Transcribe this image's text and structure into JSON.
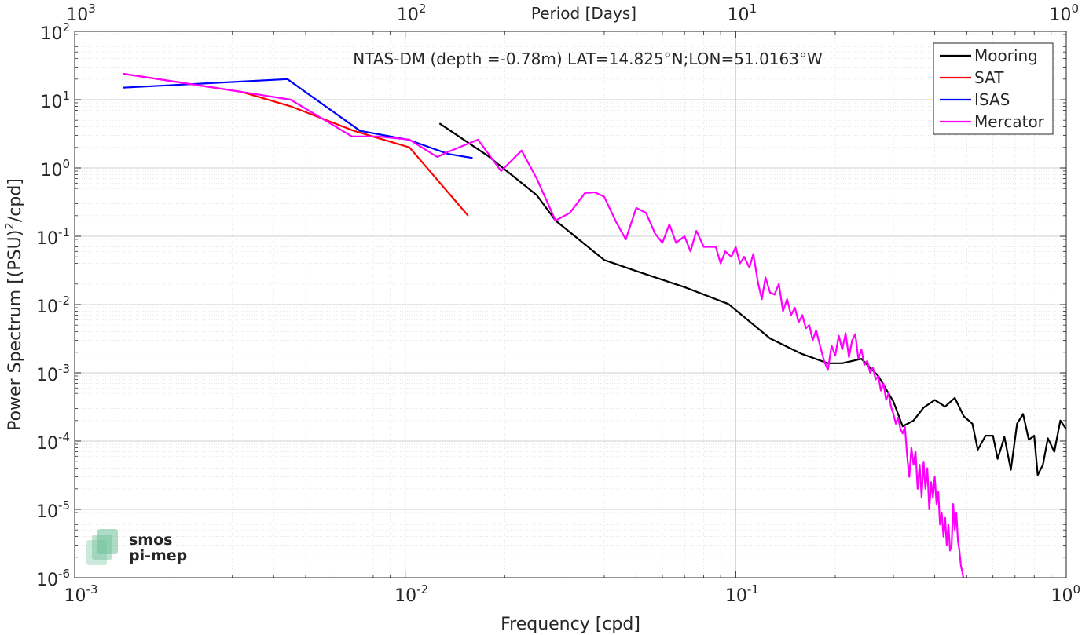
{
  "chart_data": {
    "type": "line",
    "title": "NTAS-DM (depth =-0.78m) LAT=14.825°N;LON=51.0163°W",
    "xlabel": "Frequency [cpd]",
    "ylabel": "Power Spectrum [(PSU)",
    "ylabel_sup": "2",
    "ylabel_tail": "/cpd]",
    "top_xlabel": "Period [Days]",
    "x_scale": "log",
    "y_scale": "log",
    "xlim": [
      0.001,
      1
    ],
    "ylim": [
      1e-06,
      100
    ],
    "grid": true,
    "legend_position": "top-right",
    "x_ticks": [
      {
        "value": 0.001,
        "base": "10",
        "exp": "-3"
      },
      {
        "value": 0.01,
        "base": "10",
        "exp": "-2"
      },
      {
        "value": 0.1,
        "base": "10",
        "exp": "-1"
      },
      {
        "value": 1,
        "base": "10",
        "exp": "0"
      }
    ],
    "top_ticks": [
      {
        "value": 0.001,
        "base": "10",
        "exp": "3"
      },
      {
        "value": 0.01,
        "base": "10",
        "exp": "2"
      },
      {
        "value": 0.1,
        "base": "10",
        "exp": "1"
      },
      {
        "value": 1,
        "base": "10",
        "exp": "0"
      }
    ],
    "y_ticks": [
      {
        "value": 100,
        "base": "10",
        "exp": "2"
      },
      {
        "value": 10,
        "base": "10",
        "exp": "1"
      },
      {
        "value": 1,
        "base": "10",
        "exp": "0"
      },
      {
        "value": 0.1,
        "base": "10",
        "exp": "-1"
      },
      {
        "value": 0.01,
        "base": "10",
        "exp": "-2"
      },
      {
        "value": 0.001,
        "base": "10",
        "exp": "-3"
      },
      {
        "value": 0.0001,
        "base": "10",
        "exp": "-4"
      },
      {
        "value": 1e-05,
        "base": "10",
        "exp": "-5"
      },
      {
        "value": 1e-06,
        "base": "10",
        "exp": "-6"
      }
    ],
    "series": [
      {
        "name": "Mooring",
        "color": "#000000",
        "points": [
          [
            0.0127,
            4.5
          ],
          [
            0.0178,
            1.5
          ],
          [
            0.025,
            0.4
          ],
          [
            0.0285,
            0.17
          ],
          [
            0.04,
            0.045
          ],
          [
            0.05,
            0.031
          ],
          [
            0.07,
            0.018
          ],
          [
            0.095,
            0.0102
          ],
          [
            0.127,
            0.0032
          ],
          [
            0.158,
            0.0019
          ],
          [
            0.19,
            0.00138
          ],
          [
            0.21,
            0.00138
          ],
          [
            0.24,
            0.0016
          ],
          [
            0.27,
            0.0009
          ],
          [
            0.3,
            0.00038
          ],
          [
            0.32,
            0.000165
          ],
          [
            0.345,
            0.0002
          ],
          [
            0.37,
            0.00031
          ],
          [
            0.4,
            0.0004
          ],
          [
            0.43,
            0.00032
          ],
          [
            0.46,
            0.00043
          ],
          [
            0.49,
            0.00023
          ],
          [
            0.52,
            0.00018
          ],
          [
            0.54,
            7.5e-05
          ],
          [
            0.57,
            0.00012
          ],
          [
            0.6,
            0.00012
          ],
          [
            0.62,
            5.5e-05
          ],
          [
            0.65,
            0.000115
          ],
          [
            0.68,
            3.8e-05
          ],
          [
            0.71,
            0.00018
          ],
          [
            0.74,
            0.00025
          ],
          [
            0.77,
            0.000105
          ],
          [
            0.8,
            0.00012
          ],
          [
            0.82,
            3.2e-05
          ],
          [
            0.85,
            4.5e-05
          ],
          [
            0.88,
            0.00011
          ],
          [
            0.92,
            7e-05
          ],
          [
            0.96,
            0.0002
          ],
          [
            1.0,
            0.00015
          ]
        ]
      },
      {
        "name": "SAT",
        "color": "#ff0000",
        "points": [
          [
            0.0014,
            24
          ],
          [
            0.0032,
            13
          ],
          [
            0.0045,
            8
          ],
          [
            0.007,
            3.5
          ],
          [
            0.0103,
            2.0
          ],
          [
            0.0155,
            0.2
          ]
        ]
      },
      {
        "name": "ISAS",
        "color": "#0000ff",
        "points": [
          [
            0.0014,
            15
          ],
          [
            0.0044,
            20
          ],
          [
            0.0073,
            3.5
          ],
          [
            0.0102,
            2.6
          ],
          [
            0.0135,
            1.6
          ],
          [
            0.016,
            1.4
          ]
        ]
      },
      {
        "name": "Mercator",
        "color": "#ff00ff",
        "points": [
          [
            0.0014,
            24
          ],
          [
            0.0032,
            13
          ],
          [
            0.0045,
            10
          ],
          [
            0.0069,
            2.9
          ],
          [
            0.0083,
            2.9
          ],
          [
            0.0103,
            2.6
          ],
          [
            0.0125,
            1.45
          ],
          [
            0.0134,
            1.7
          ],
          [
            0.0166,
            2.6
          ],
          [
            0.0195,
            0.9
          ],
          [
            0.0225,
            1.8
          ],
          [
            0.025,
            0.7
          ],
          [
            0.0285,
            0.17
          ],
          [
            0.0315,
            0.22
          ],
          [
            0.035,
            0.43
          ],
          [
            0.0375,
            0.44
          ],
          [
            0.04,
            0.38
          ],
          [
            0.0435,
            0.16
          ],
          [
            0.0465,
            0.09
          ],
          [
            0.05,
            0.26
          ],
          [
            0.0535,
            0.22
          ],
          [
            0.057,
            0.11
          ],
          [
            0.06,
            0.08
          ],
          [
            0.063,
            0.15
          ],
          [
            0.066,
            0.08
          ],
          [
            0.07,
            0.1
          ],
          [
            0.073,
            0.06
          ],
          [
            0.076,
            0.12
          ],
          [
            0.08,
            0.07
          ],
          [
            0.083,
            0.07
          ],
          [
            0.087,
            0.07
          ],
          [
            0.09,
            0.04
          ],
          [
            0.093,
            0.06
          ],
          [
            0.097,
            0.05
          ],
          [
            0.1,
            0.07
          ],
          [
            0.103,
            0.04
          ],
          [
            0.106,
            0.05
          ],
          [
            0.11,
            0.035
          ],
          [
            0.113,
            0.055
          ],
          [
            0.117,
            0.02
          ],
          [
            0.12,
            0.012
          ],
          [
            0.123,
            0.025
          ],
          [
            0.127,
            0.015
          ],
          [
            0.131,
            0.014
          ],
          [
            0.135,
            0.02
          ],
          [
            0.139,
            0.008
          ],
          [
            0.143,
            0.012
          ],
          [
            0.147,
            0.007
          ],
          [
            0.151,
            0.009
          ],
          [
            0.155,
            0.0055
          ],
          [
            0.159,
            0.007
          ],
          [
            0.163,
            0.0045
          ],
          [
            0.167,
            0.005
          ],
          [
            0.171,
            0.003
          ],
          [
            0.175,
            0.0042
          ],
          [
            0.18,
            0.0025
          ],
          [
            0.185,
            0.0015
          ],
          [
            0.19,
            0.0011
          ],
          [
            0.195,
            0.0025
          ],
          [
            0.2,
            0.0018
          ],
          [
            0.205,
            0.0035
          ],
          [
            0.21,
            0.0022
          ],
          [
            0.215,
            0.0038
          ],
          [
            0.22,
            0.0017
          ],
          [
            0.225,
            0.003
          ],
          [
            0.23,
            0.0037
          ],
          [
            0.235,
            0.0016
          ],
          [
            0.24,
            0.0022
          ],
          [
            0.245,
            0.0013
          ],
          [
            0.25,
            0.0015
          ],
          [
            0.255,
            0.001
          ],
          [
            0.26,
            0.0012
          ],
          [
            0.265,
            0.0008
          ],
          [
            0.27,
            0.0009
          ],
          [
            0.275,
            0.00055
          ],
          [
            0.28,
            0.0007
          ],
          [
            0.285,
            0.0004
          ],
          [
            0.29,
            0.0005
          ],
          [
            0.295,
            0.00032
          ],
          [
            0.3,
            0.00025
          ],
          [
            0.305,
            0.00018
          ],
          [
            0.31,
            0.00022
          ],
          [
            0.315,
            0.00015
          ],
          [
            0.32,
            0.00013
          ],
          [
            0.325,
            0.00016
          ],
          [
            0.33,
            6e-05
          ],
          [
            0.335,
            3e-05
          ],
          [
            0.34,
            8e-05
          ],
          [
            0.345,
            4.5e-05
          ],
          [
            0.35,
            7e-05
          ],
          [
            0.355,
            2e-05
          ],
          [
            0.36,
            4.5e-05
          ],
          [
            0.365,
            1.5e-05
          ],
          [
            0.37,
            5e-05
          ],
          [
            0.375,
            2e-05
          ],
          [
            0.38,
            4e-05
          ],
          [
            0.385,
            1e-05
          ],
          [
            0.39,
            2.5e-05
          ],
          [
            0.395,
            1.5e-05
          ],
          [
            0.4,
            3e-05
          ],
          [
            0.405,
            1.2e-05
          ],
          [
            0.41,
            1.8e-05
          ],
          [
            0.415,
            6e-06
          ],
          [
            0.42,
            9e-06
          ],
          [
            0.425,
            4e-06
          ],
          [
            0.43,
            7.5e-06
          ],
          [
            0.435,
            3e-06
          ],
          [
            0.44,
            6e-06
          ],
          [
            0.445,
            2.5e-06
          ],
          [
            0.45,
            3e-06
          ],
          [
            0.455,
            1.2e-05
          ],
          [
            0.46,
            5e-06
          ],
          [
            0.465,
            9e-06
          ],
          [
            0.47,
            3.5e-06
          ],
          [
            0.475,
            2.5e-06
          ],
          [
            0.48,
            1.5e-06
          ],
          [
            0.485,
            1.2e-06
          ],
          [
            0.49,
            9e-07
          ]
        ]
      }
    ]
  },
  "watermark": {
    "line1": "smos",
    "line2": "pi-mep",
    "color": "#6dbf98"
  }
}
